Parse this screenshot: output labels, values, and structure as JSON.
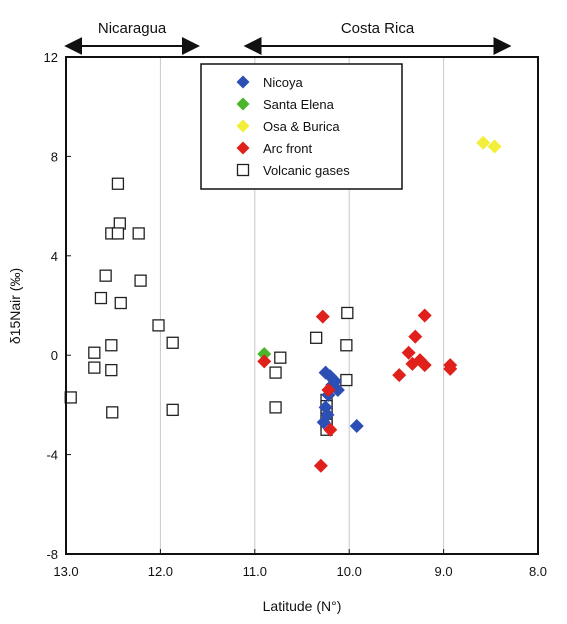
{
  "chart_data": {
    "type": "scatter",
    "title": "",
    "xlabel": "Latitude (N°)",
    "ylabel": "δ15Nair (‰)",
    "xlim": [
      13.0,
      8.0
    ],
    "ylim": [
      -8,
      12
    ],
    "x_reversed": true,
    "xticks": [
      "13.0",
      "12.0",
      "11.0",
      "10.0",
      "9.0",
      "8.0"
    ],
    "yticks": [
      "12",
      "8",
      "4",
      "0",
      "-4",
      "-8"
    ],
    "grid": "vertical",
    "legend_position": "top-center",
    "regions": [
      {
        "name": "Nicaragua",
        "from": 13.0,
        "to": 11.6
      },
      {
        "name": "Costa Rica",
        "from": 11.1,
        "to": 8.3
      }
    ],
    "series": [
      {
        "name": "Nicoya",
        "marker": "diamond",
        "color": "#2b4fb5",
        "points": [
          [
            10.25,
            -0.7
          ],
          [
            10.2,
            -0.85
          ],
          [
            10.18,
            -1.2
          ],
          [
            10.15,
            -1.05
          ],
          [
            10.12,
            -1.4
          ],
          [
            10.22,
            -1.6
          ],
          [
            10.25,
            -2.1
          ],
          [
            10.23,
            -2.4
          ],
          [
            10.27,
            -2.7
          ],
          [
            9.92,
            -2.85
          ]
        ]
      },
      {
        "name": "Santa Elena",
        "marker": "diamond",
        "color": "#4bb52b",
        "points": [
          [
            10.9,
            0.05
          ]
        ]
      },
      {
        "name": "Osa & Burica",
        "marker": "diamond",
        "color": "#f2ee3a",
        "points": [
          [
            8.58,
            8.55
          ],
          [
            8.46,
            8.4
          ]
        ]
      },
      {
        "name": "Arc front",
        "marker": "diamond",
        "color": "#e0201b",
        "points": [
          [
            10.9,
            -0.25
          ],
          [
            10.28,
            1.55
          ],
          [
            10.22,
            -1.4
          ],
          [
            10.2,
            -3.0
          ],
          [
            10.3,
            -4.45
          ],
          [
            9.47,
            -0.8
          ],
          [
            9.37,
            0.1
          ],
          [
            9.33,
            -0.35
          ],
          [
            9.3,
            0.75
          ],
          [
            9.25,
            -0.2
          ],
          [
            9.2,
            -0.4
          ],
          [
            9.2,
            1.6
          ],
          [
            8.93,
            -0.4
          ],
          [
            8.93,
            -0.55
          ]
        ]
      },
      {
        "name": "Volcanic gases",
        "marker": "square-open",
        "color": "#222222",
        "points": [
          [
            12.95,
            -1.7
          ],
          [
            12.7,
            0.1
          ],
          [
            12.7,
            -0.5
          ],
          [
            12.63,
            2.3
          ],
          [
            12.58,
            3.2
          ],
          [
            12.52,
            4.9
          ],
          [
            12.52,
            0.4
          ],
          [
            12.52,
            -0.6
          ],
          [
            12.51,
            -2.3
          ],
          [
            12.45,
            6.9
          ],
          [
            12.43,
            5.3
          ],
          [
            12.42,
            2.1
          ],
          [
            12.45,
            4.9
          ],
          [
            12.23,
            4.9
          ],
          [
            12.21,
            3.0
          ],
          [
            12.02,
            1.2
          ],
          [
            11.87,
            0.5
          ],
          [
            11.87,
            -2.2
          ],
          [
            10.78,
            -0.7
          ],
          [
            10.78,
            -2.1
          ],
          [
            10.73,
            -0.1
          ],
          [
            10.35,
            0.7
          ],
          [
            10.24,
            -1.8
          ],
          [
            10.24,
            -2.05
          ],
          [
            10.24,
            -2.3
          ],
          [
            10.24,
            -2.55
          ],
          [
            10.24,
            -2.8
          ],
          [
            10.24,
            -3.0
          ],
          [
            10.02,
            1.7
          ],
          [
            10.03,
            0.4
          ],
          [
            10.03,
            -1.0
          ]
        ]
      }
    ]
  }
}
